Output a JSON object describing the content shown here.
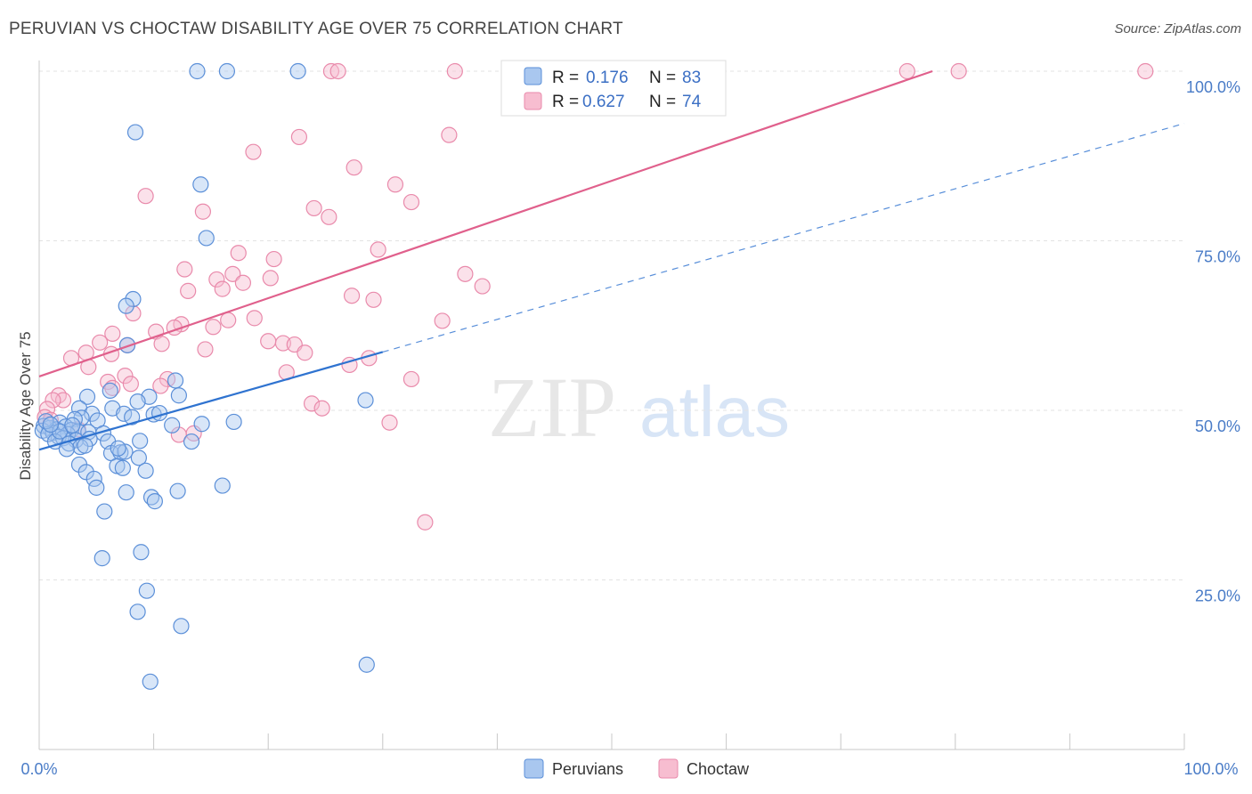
{
  "header": {
    "title": "PERUVIAN VS CHOCTAW DISABILITY AGE OVER 75 CORRELATION CHART",
    "source": "Source: ZipAtlas.com"
  },
  "watermark": {
    "zip": "ZIP",
    "atlas": "atlas"
  },
  "colors": {
    "peruvian_fill": "#a9c7ef",
    "peruvian_stroke": "#5b8fd8",
    "peruvian_line": "#2f73d0",
    "choctaw_fill": "#f7bdd0",
    "choctaw_stroke": "#e98aab",
    "choctaw_line": "#e0608c"
  },
  "legend": {
    "rows": [
      {
        "r_label": "R =",
        "r_value": "0.176",
        "n_label": "N =",
        "n_value": "83"
      },
      {
        "r_label": "R =",
        "r_value": "0.627",
        "n_label": "N =",
        "n_value": "74"
      }
    ]
  },
  "chart_data": {
    "type": "scatter",
    "title": "PERUVIAN VS CHOCTAW DISABILITY AGE OVER 75 CORRELATION CHART",
    "xlabel": "",
    "ylabel": "Disability Age Over 75",
    "xlim": [
      0,
      100
    ],
    "ylim": [
      0,
      100
    ],
    "x_tick_labels": [
      "0.0%",
      "100.0%"
    ],
    "y_ticks": [
      25,
      50,
      75,
      100
    ],
    "y_tick_labels": [
      "25.0%",
      "50.0%",
      "75.0%",
      "100.0%"
    ],
    "grid": true,
    "legend_position": "bottom",
    "series": [
      {
        "name": "Peruvians",
        "r": 0.176,
        "n": 83,
        "trend": {
          "solid": [
            [
              0,
              44.2
            ],
            [
              30,
              58.6
            ]
          ],
          "dashed": [
            [
              30,
              58.6
            ],
            [
              100,
              92.3
            ]
          ]
        },
        "points": [
          [
            13.8,
            100
          ],
          [
            16.4,
            100
          ],
          [
            22.6,
            100
          ],
          [
            8.4,
            91
          ],
          [
            14.1,
            83.3
          ],
          [
            14.6,
            75.4
          ],
          [
            8.2,
            66.4
          ],
          [
            7.6,
            65.4
          ],
          [
            7.7,
            59.6
          ],
          [
            11.9,
            54.4
          ],
          [
            28.5,
            51.5
          ],
          [
            4.2,
            52
          ],
          [
            9.6,
            52
          ],
          [
            12.2,
            52.2
          ],
          [
            6.2,
            52.9
          ],
          [
            8.6,
            51.3
          ],
          [
            6.4,
            50.3
          ],
          [
            3.5,
            50.3
          ],
          [
            7.4,
            49.5
          ],
          [
            4.6,
            49.5
          ],
          [
            10,
            49.4
          ],
          [
            8.1,
            49
          ],
          [
            3.7,
            48.9
          ],
          [
            3.1,
            48.7
          ],
          [
            5.1,
            48.5
          ],
          [
            1.8,
            48.2
          ],
          [
            0.4,
            47.7
          ],
          [
            0.9,
            47.4
          ],
          [
            1.5,
            47.2
          ],
          [
            2.3,
            47.6
          ],
          [
            2.8,
            47.1
          ],
          [
            3.4,
            46.9
          ],
          [
            0.3,
            47
          ],
          [
            1.2,
            46.7
          ],
          [
            2.5,
            46.5
          ],
          [
            1.7,
            46.1
          ],
          [
            4.3,
            46.8
          ],
          [
            14.2,
            48
          ],
          [
            17,
            48.3
          ],
          [
            11.6,
            47.8
          ],
          [
            5.6,
            46.6
          ],
          [
            0.8,
            46.5
          ],
          [
            4.4,
            45.8
          ],
          [
            3.2,
            45.6
          ],
          [
            2.1,
            45.9
          ],
          [
            1.4,
            45.4
          ],
          [
            2.6,
            45.1
          ],
          [
            6,
            45.4
          ],
          [
            8.8,
            45.5
          ],
          [
            3.6,
            44.6
          ],
          [
            6.3,
            43.7
          ],
          [
            7.1,
            43.8
          ],
          [
            8.7,
            43
          ],
          [
            2.4,
            44.3
          ],
          [
            7.5,
            43.9
          ],
          [
            13.3,
            45.4
          ],
          [
            3.5,
            42
          ],
          [
            6.8,
            41.8
          ],
          [
            7.3,
            41.5
          ],
          [
            4.1,
            40.9
          ],
          [
            9.3,
            41.1
          ],
          [
            4.8,
            39.9
          ],
          [
            5,
            38.6
          ],
          [
            7.6,
            37.9
          ],
          [
            9.8,
            37.2
          ],
          [
            10.1,
            36.6
          ],
          [
            12.1,
            38.1
          ],
          [
            16,
            38.9
          ],
          [
            5.7,
            35.1
          ],
          [
            5.5,
            28.2
          ],
          [
            8.9,
            29.1
          ],
          [
            9.4,
            23.4
          ],
          [
            8.6,
            20.3
          ],
          [
            12.4,
            18.2
          ],
          [
            28.6,
            12.5
          ],
          [
            9.7,
            10
          ],
          [
            1.8,
            46.9
          ],
          [
            2.9,
            47.8
          ],
          [
            0.6,
            48.4
          ],
          [
            6.9,
            44.4
          ],
          [
            10.5,
            49.6
          ],
          [
            4,
            44.8
          ],
          [
            1,
            47.9
          ]
        ]
      },
      {
        "name": "Choctaw",
        "r": 0.627,
        "n": 74,
        "trend": {
          "solid": [
            [
              0,
              55
            ],
            [
              78,
              100
            ]
          ]
        },
        "points": [
          [
            25.5,
            100
          ],
          [
            26.1,
            100
          ],
          [
            36.3,
            100
          ],
          [
            75.8,
            100
          ],
          [
            80.3,
            100
          ],
          [
            96.6,
            100
          ],
          [
            22.7,
            90.3
          ],
          [
            35.8,
            90.6
          ],
          [
            18.7,
            88.1
          ],
          [
            27.5,
            85.8
          ],
          [
            9.3,
            81.6
          ],
          [
            31.1,
            83.3
          ],
          [
            32.5,
            80.7
          ],
          [
            24,
            79.8
          ],
          [
            14.3,
            79.3
          ],
          [
            25.3,
            78.5
          ],
          [
            29.6,
            73.7
          ],
          [
            17.4,
            73.2
          ],
          [
            20.5,
            72.3
          ],
          [
            12.7,
            70.8
          ],
          [
            16.9,
            70.1
          ],
          [
            37.2,
            70.1
          ],
          [
            15.5,
            69.3
          ],
          [
            20.2,
            69.5
          ],
          [
            17.8,
            68.8
          ],
          [
            38.7,
            68.3
          ],
          [
            16,
            67.9
          ],
          [
            13,
            67.6
          ],
          [
            27.3,
            66.9
          ],
          [
            29.2,
            66.3
          ],
          [
            8.2,
            64.3
          ],
          [
            35.2,
            63.2
          ],
          [
            16.5,
            63.3
          ],
          [
            18.8,
            63.6
          ],
          [
            12.4,
            62.7
          ],
          [
            11.8,
            62.2
          ],
          [
            15.2,
            62.3
          ],
          [
            10.2,
            61.6
          ],
          [
            6.4,
            61.3
          ],
          [
            20,
            60.2
          ],
          [
            21.3,
            59.9
          ],
          [
            7.7,
            59.6
          ],
          [
            10.7,
            59.8
          ],
          [
            22.3,
            59.7
          ],
          [
            5.3,
            60
          ],
          [
            14.5,
            59
          ],
          [
            23.2,
            58.5
          ],
          [
            4.1,
            58.5
          ],
          [
            6.3,
            58.3
          ],
          [
            2.8,
            57.7
          ],
          [
            28.8,
            57.7
          ],
          [
            27.1,
            56.7
          ],
          [
            4.3,
            56.4
          ],
          [
            21.6,
            55.6
          ],
          [
            7.5,
            55.1
          ],
          [
            11.2,
            54.6
          ],
          [
            32.5,
            54.6
          ],
          [
            6,
            54.2
          ],
          [
            8,
            53.9
          ],
          [
            10.6,
            53.6
          ],
          [
            6.4,
            53.3
          ],
          [
            1.7,
            52.2
          ],
          [
            2.1,
            51.5
          ],
          [
            1.2,
            51.5
          ],
          [
            23.8,
            51
          ],
          [
            24.7,
            50.3
          ],
          [
            0.7,
            50.2
          ],
          [
            0.5,
            49
          ],
          [
            1,
            48.6
          ],
          [
            30.6,
            48.2
          ],
          [
            12.2,
            46.4
          ],
          [
            13.5,
            46.6
          ],
          [
            33.7,
            33.5
          ],
          [
            3.4,
            47.2
          ]
        ]
      }
    ]
  },
  "bottom_legend": [
    {
      "label": "Peruvians"
    },
    {
      "label": "Choctaw"
    }
  ]
}
